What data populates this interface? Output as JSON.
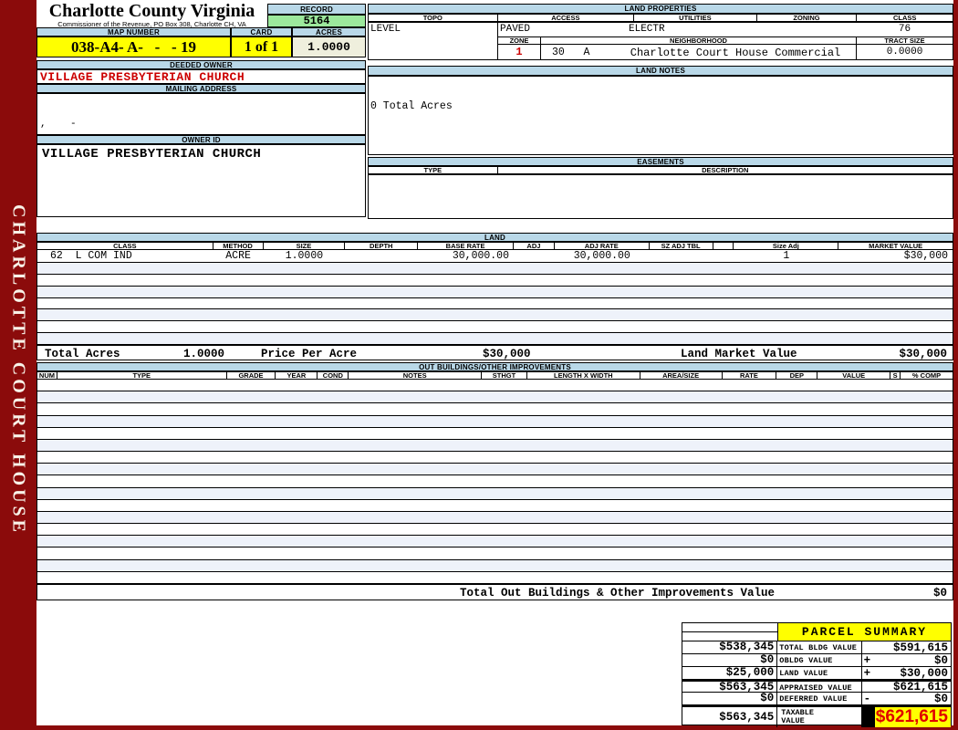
{
  "sidebar": {
    "vertical_label": "CHARLOTTE COURT HOUSE"
  },
  "header": {
    "county_title": "Charlotte County Virginia",
    "commissioner_line": "Commissioner of the Revenue, PO Box 308, Charlotte CH, VA",
    "record_label": "RECORD",
    "record_value": "5164",
    "map_number_label": "MAP NUMBER",
    "map_number_value": "038-A4- A-   -   - 19",
    "card_label": "CARD",
    "card_value": "1 of 1",
    "acres_label": "ACRES",
    "acres_value": "1.0000"
  },
  "owner": {
    "deeded_owner_label": "DEEDED OWNER",
    "deeded_owner_value": "VILLAGE PRESBYTERIAN CHURCH",
    "mailing_address_label": "MAILING ADDRESS",
    "mailing_address_value": ",    -",
    "owner_id_label": "OWNER ID",
    "owner_id_value": "VILLAGE PRESBYTERIAN CHURCH"
  },
  "land_properties": {
    "section_label": "LAND PROPERTIES",
    "columns": [
      "TOPO",
      "ACCESS",
      "UTILITIES",
      "ZONING",
      "CLASS"
    ],
    "values": {
      "topo": "LEVEL",
      "access": "PAVED",
      "utilities": "ELECTR",
      "zoning": "",
      "class": "76"
    },
    "zone_label": "ZONE",
    "zone_value": "1",
    "neighborhood_label": "NEIGHBORHOOD",
    "neighborhood_code": "30   A",
    "neighborhood_name": "Charlotte Court House Commercial",
    "tract_size_label": "TRACT SIZE",
    "tract_size_value": "0.0000"
  },
  "land_notes": {
    "section_label": "LAND NOTES",
    "note": "0 Total Acres"
  },
  "easements": {
    "section_label": "EASEMENTS",
    "type_label": "TYPE",
    "description_label": "DESCRIPTION"
  },
  "land_table": {
    "section_label": "LAND",
    "columns": [
      "CLASS",
      "METHOD",
      "SIZE",
      "DEPTH",
      "BASE RATE",
      "ADJ",
      "ADJ RATE",
      "SZ ADJ TBL",
      "",
      "Size Adj",
      "MARKET VALUE"
    ],
    "rows": [
      [
        "62  L COM IND",
        "ACRE",
        "1.0000",
        "",
        "30,000.00",
        "",
        "30,000.00",
        "",
        "",
        "1",
        "$30,000"
      ]
    ],
    "empty_rows": 7,
    "summary": {
      "total_acres_label": "Total Acres",
      "total_acres": "1.0000",
      "price_per_acre_label": "Price Per Acre",
      "price_per_acre": "$30,000",
      "market_value_label": "Land Market Value",
      "market_value": "$30,000"
    }
  },
  "out_buildings": {
    "section_label": "OUT BUILDINGS/OTHER IMPROVEMENTS",
    "columns": [
      "NUM",
      "TYPE",
      "GRADE",
      "YEAR",
      "COND",
      "NOTES",
      "STHGT",
      "LENGTH X WIDTH",
      "AREA/SIZE",
      "RATE",
      "DEP",
      "VALUE",
      "S",
      "% COMP"
    ],
    "empty_rows": 17,
    "total_label": "Total Out Buildings & Other Improvements Value",
    "total_value": "$0"
  },
  "parcel_summary": {
    "title": "PARCEL SUMMARY",
    "rows": [
      {
        "prior": "$538,345",
        "label": "TOTAL BLDG VALUE",
        "sign": "",
        "value": "$591,615"
      },
      {
        "prior": "$0",
        "label": "OBLDG VALUE",
        "sign": "+",
        "value": "$0"
      },
      {
        "prior": "$25,000",
        "label": "LAND VALUE",
        "sign": "+",
        "value": "$30,000"
      },
      {
        "prior": "$563,345",
        "label": "APPRAISED VALUE",
        "sign": "",
        "value": "$621,615"
      },
      {
        "prior": "$0",
        "label": "DEFERRED VALUE",
        "sign": "-",
        "value": "$0"
      }
    ],
    "taxable": {
      "prior": "$563,345",
      "label": "TAXABLE VALUE",
      "value": "$621,615"
    }
  },
  "colors": {
    "maroon": "#8B0B0B",
    "section_header_blue": "#B9D8E8",
    "record_green": "#9CE89C",
    "highlight_yellow": "#FFFF00",
    "acres_cream": "#EFEFDD",
    "owner_red": "#CC0000",
    "row_stripe": "#EEF2FA",
    "taxable_red": "#E00000"
  }
}
